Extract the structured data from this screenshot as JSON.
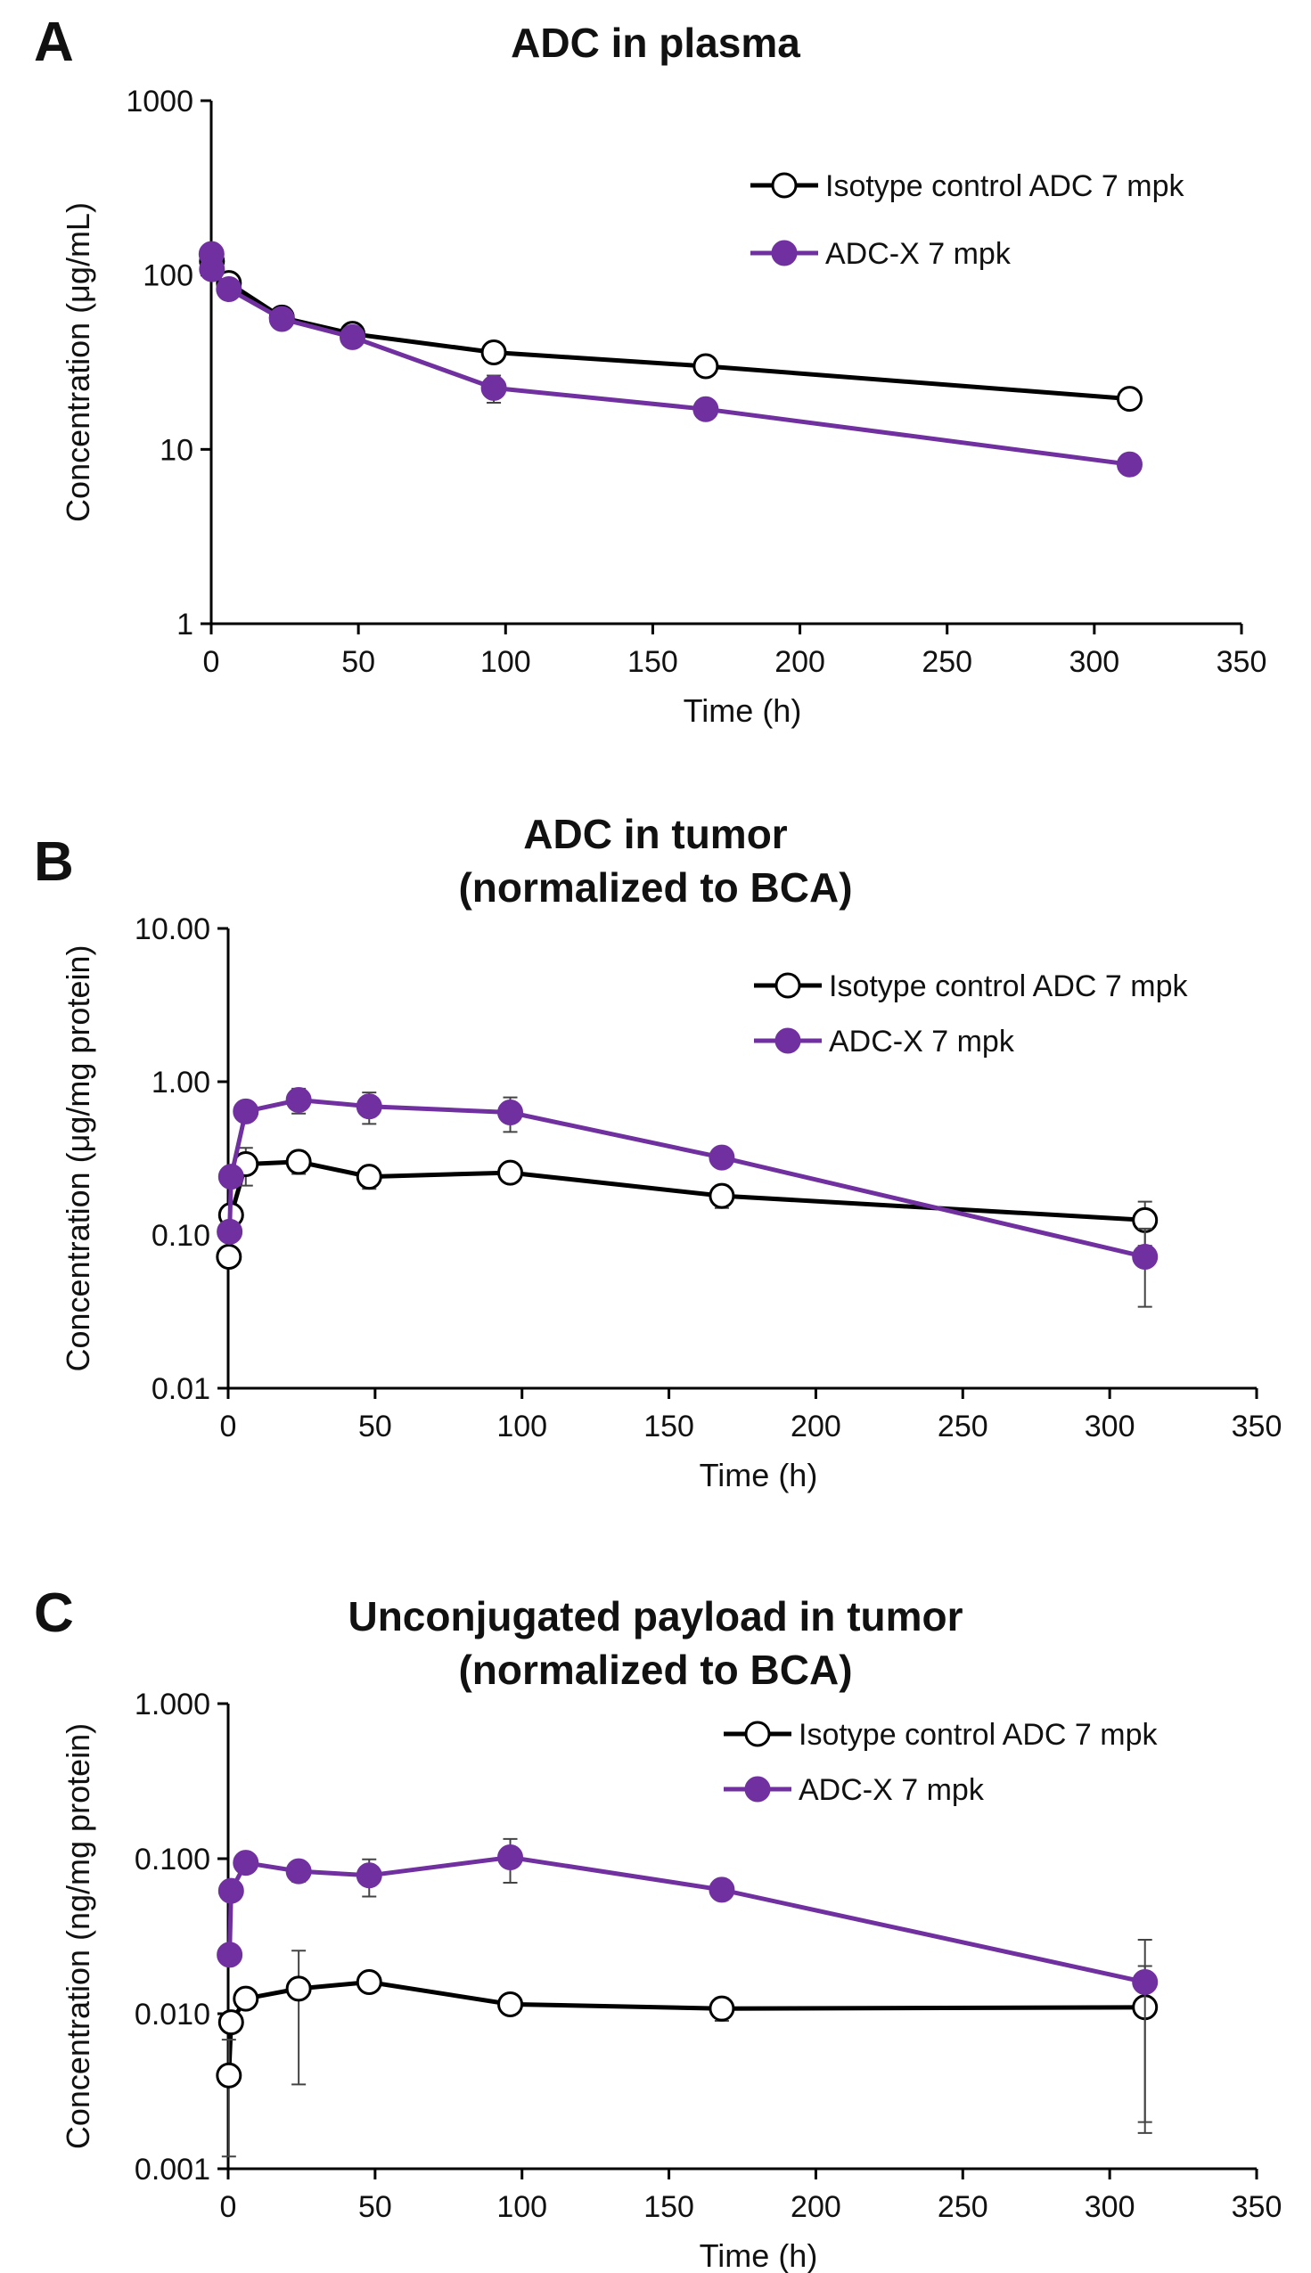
{
  "chart_data": [
    {
      "panel": "A",
      "type": "line",
      "title": "ADC in plasma",
      "subtitle": "",
      "xlabel": "Time (h)",
      "ylabel": "Concentration (μg/mL)",
      "xlim": [
        0,
        350
      ],
      "ylim": [
        1,
        1000
      ],
      "y_scale": "log",
      "x_ticks": [
        "0",
        "50",
        "100",
        "150",
        "200",
        "250",
        "300",
        "350"
      ],
      "y_ticks": [
        "1",
        "10",
        "100",
        "1000"
      ],
      "legend_position": "top-right",
      "series": [
        {
          "name": "Isotype control ADC 7 mpk",
          "color": "#000000",
          "marker": "open-circle",
          "x": [
            0.25,
            6,
            24,
            48,
            96,
            168,
            312
          ],
          "y": [
            120,
            90,
            57,
            46,
            36,
            30,
            19.5
          ],
          "err": [
            0,
            0,
            0,
            0,
            0,
            0,
            2
          ]
        },
        {
          "name": "ADC-X 7 mpk",
          "color": "#7030a0",
          "marker": "filled-circle",
          "x": [
            0.1,
            0.25,
            6,
            24,
            48,
            96,
            168,
            312
          ],
          "y": [
            132,
            108,
            83,
            56,
            44,
            22.5,
            17,
            8.2
          ],
          "err": [
            0,
            0,
            8,
            6,
            0,
            4,
            0,
            0
          ]
        }
      ]
    },
    {
      "panel": "B",
      "type": "line",
      "title": "ADC in tumor",
      "subtitle": "(normalized to BCA)",
      "xlabel": "Time (h)",
      "ylabel": "Concentration (μg/mg protein)",
      "xlim": [
        0,
        350
      ],
      "ylim": [
        0.01,
        10
      ],
      "y_scale": "log",
      "x_ticks": [
        "0",
        "50",
        "100",
        "150",
        "200",
        "250",
        "300",
        "350"
      ],
      "y_ticks": [
        "0.01",
        "0.10",
        "1.00",
        "10.00"
      ],
      "legend_position": "top-right",
      "series": [
        {
          "name": "Isotype control ADC 7 mpk",
          "color": "#000000",
          "marker": "open-circle",
          "x": [
            0.25,
            1,
            6,
            24,
            48,
            96,
            168,
            312
          ],
          "y": [
            0.072,
            0.135,
            0.29,
            0.3,
            0.24,
            0.255,
            0.18,
            0.125
          ],
          "err": [
            0,
            0,
            0.08,
            0.05,
            0.04,
            0,
            0.03,
            0.04
          ]
        },
        {
          "name": "ADC-X 7 mpk",
          "color": "#7030a0",
          "marker": "filled-circle",
          "x": [
            0.5,
            1,
            6,
            24,
            48,
            96,
            168,
            312
          ],
          "y": [
            0.105,
            0.24,
            0.64,
            0.76,
            0.69,
            0.63,
            0.32,
            0.072
          ],
          "err": [
            0,
            0,
            0,
            0.14,
            0.16,
            0.16,
            0,
            0.038
          ]
        }
      ]
    },
    {
      "panel": "C",
      "type": "line",
      "title": "Unconjugated payload in tumor",
      "subtitle": "(normalized to BCA)",
      "xlabel": "Time (h)",
      "ylabel": "Concentration (ng/mg protein)",
      "xlim": [
        0,
        350
      ],
      "ylim": [
        0.001,
        1
      ],
      "y_scale": "log",
      "x_ticks": [
        "0",
        "50",
        "100",
        "150",
        "200",
        "250",
        "300",
        "350"
      ],
      "y_ticks": [
        "0.001",
        "0.010",
        "0.100",
        "1.000"
      ],
      "legend_position": "top-right",
      "series": [
        {
          "name": "Isotype control ADC 7 mpk",
          "color": "#000000",
          "marker": "open-circle",
          "x": [
            0.25,
            1,
            6,
            24,
            48,
            96,
            168,
            312
          ],
          "y": [
            0.004,
            0.0088,
            0.0125,
            0.0145,
            0.016,
            0.0115,
            0.0108,
            0.011
          ],
          "err": [
            0.0028,
            0,
            0,
            0.011,
            0,
            0,
            0.0018,
            0.0093
          ]
        },
        {
          "name": "ADC-X 7 mpk",
          "color": "#7030a0",
          "marker": "filled-circle",
          "x": [
            0.5,
            1,
            6,
            24,
            48,
            96,
            168,
            312
          ],
          "y": [
            0.024,
            0.062,
            0.094,
            0.083,
            0.078,
            0.102,
            0.063,
            0.016
          ],
          "err": [
            0,
            0,
            0,
            0.012,
            0.021,
            0.032,
            0,
            0.014
          ]
        }
      ]
    }
  ]
}
